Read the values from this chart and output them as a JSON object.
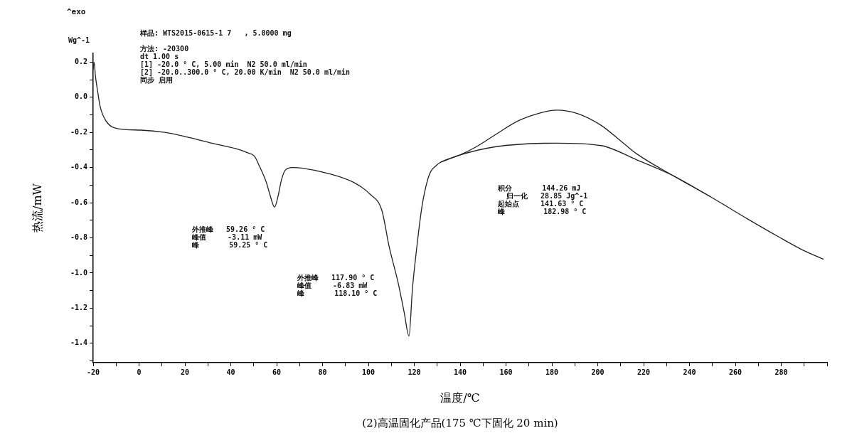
{
  "chart_data": {
    "type": "line",
    "title": "(2)高温固化产品(175 ℃下固化 20 min)",
    "xlabel": "温度/℃",
    "ylabel": "热流/mW",
    "xlim": [
      -20,
      300
    ],
    "xticks": [
      -20,
      {
        "value": -10,
        "label": null
      },
      0,
      {
        "value": 10,
        "label": null
      },
      20,
      {
        "value": 30,
        "label": null
      },
      40,
      {
        "value": 50,
        "label": null
      },
      60,
      {
        "value": 70,
        "label": null
      },
      80,
      {
        "value": 90,
        "label": null
      },
      100,
      {
        "value": 110,
        "label": null
      },
      120,
      {
        "value": 130,
        "label": null
      },
      140,
      {
        "value": 150,
        "label": null
      },
      160,
      {
        "value": 170,
        "label": null
      },
      180,
      {
        "value": 190,
        "label": null
      },
      200,
      {
        "value": 210,
        "label": null
      },
      220,
      {
        "value": 230,
        "label": null
      },
      240,
      {
        "value": 250,
        "label": null
      },
      260,
      {
        "value": 270,
        "label": null
      },
      280,
      {
        "value": 290,
        "label": null
      },
      {
        "value": 300,
        "label": null
      }
    ],
    "ylim": [
      -1.51,
      0.25
    ],
    "yticks": [
      {
        "value": -1.5,
        "label": null
      },
      -1.4,
      {
        "value": -1.3,
        "label": null
      },
      -1.2,
      {
        "value": -1.1,
        "label": null
      },
      {
        "value": -1,
        "label": "-1.0"
      },
      {
        "value": -0.9,
        "label": null
      },
      -0.8,
      {
        "value": -0.7,
        "label": null
      },
      -0.6,
      {
        "value": -0.5,
        "label": null
      },
      -0.4,
      {
        "value": -0.3,
        "label": null
      },
      -0.2,
      {
        "value": -0.1,
        "label": null
      },
      {
        "value": 0,
        "label": "0.0"
      },
      {
        "value": 0.1,
        "label": null
      },
      0.2
    ],
    "grid": false,
    "legend": false,
    "marker": "none",
    "line_style": "solid",
    "series": [
      {
        "color": "#222222",
        "x": [
          -20,
          -19.6,
          -19,
          -18,
          -17,
          -14.5,
          -9.4,
          0.9,
          11.2,
          21.5,
          31.8,
          42.1,
          47.2,
          50.3,
          52.4,
          55.5,
          57,
          59.1,
          60.6,
          62.1,
          63.7,
          66.8,
          70.9,
          83.2,
          93.5,
          100.7,
          105.9,
          109,
          113.1,
          115.6,
          117.7,
          119.2,
          120.8,
          123.4,
          126.5,
          129.5,
          131.6,
          139.8,
          147,
          155.2,
          165.5,
          175.8,
          182,
          191.3,
          201.5,
          211.8,
          217,
          232.4,
          248.9,
          265.3,
          278.7,
          289,
          298.3
        ],
        "values": [
          0.16,
          0.2,
          0.12,
          0.03,
          -0.05,
          -0.133,
          -0.178,
          -0.187,
          -0.2,
          -0.228,
          -0.261,
          -0.292,
          -0.315,
          -0.335,
          -0.389,
          -0.484,
          -0.551,
          -0.625,
          -0.564,
          -0.47,
          -0.416,
          -0.4,
          -0.403,
          -0.436,
          -0.484,
          -0.551,
          -0.645,
          -0.847,
          -1.063,
          -1.224,
          -1.359,
          -1.09,
          -0.888,
          -0.618,
          -0.443,
          -0.389,
          -0.369,
          -0.329,
          -0.282,
          -0.214,
          -0.133,
          -0.086,
          -0.073,
          -0.093,
          -0.16,
          -0.268,
          -0.322,
          -0.443,
          -0.564,
          -0.692,
          -0.793,
          -0.867,
          -0.921
        ]
      },
      {
        "color": "#222222",
        "x": [
          131.6,
          139.8,
          155.2,
          182,
          201.5,
          217,
          232.4,
          248.9
        ],
        "values": [
          -0.369,
          -0.329,
          -0.282,
          -0.261,
          -0.275,
          -0.356,
          -0.443,
          -0.564
        ]
      }
    ],
    "annotations": [
      "^exo",
      "Wg^-1",
      "样品: WTS2015-0615-1 7   , 5.0000 mg\n\n方法: -20300\ndt 1.00 s\n[1] -20.0 ° C, 5.00 min  N2 50.0 ml/min\n[2] -20.0..300.0 ° C, 20.00 K/min  N2 50.0 ml/min\n同步 启用",
      "外推峰   59.26 ° C\n峰值     -3.11 mW\n峰       59.25 ° C",
      "外推峰   117.90 ° C\n峰值     -6.83 mW\n峰       118.10 ° C",
      "积分       144.26 mJ\n  归一化   28.85 Jg^-1\n起始点     141.63 ° C\n峰         182.98 ° C"
    ]
  }
}
